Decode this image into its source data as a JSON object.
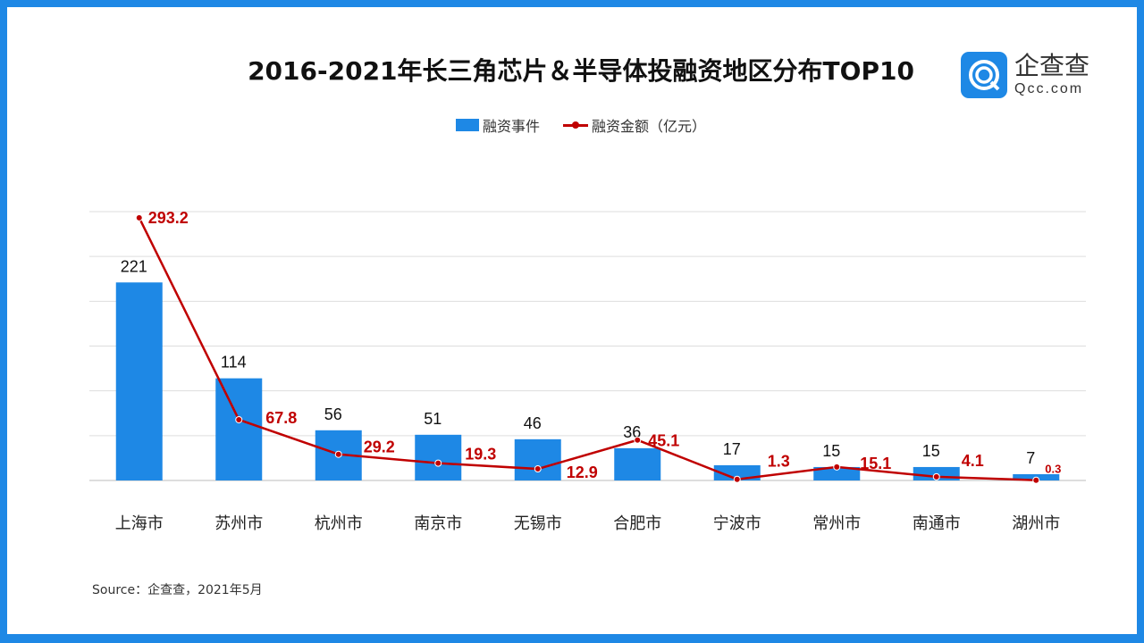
{
  "title": "2016-2021年长三角芯片＆半导体投融资地区分布TOP10",
  "logo": {
    "cn": "企查查",
    "en": "Qcc.com"
  },
  "source": "Source：企查查，2021年5月",
  "colors": {
    "border": "#1e88e5",
    "bar": "#1e88e5",
    "line": "#c00000"
  },
  "chart_data": {
    "type": "bar+line",
    "title": "2016-2021年长三角芯片＆半导体投融资地区分布TOP10",
    "categories": [
      "上海市",
      "苏州市",
      "杭州市",
      "南京市",
      "无锡市",
      "合肥市",
      "宁波市",
      "常州市",
      "南通市",
      "湖州市"
    ],
    "series": [
      {
        "name": "融资事件",
        "type": "bar",
        "values": [
          221,
          114,
          56,
          51,
          46,
          36,
          17,
          15,
          15,
          7
        ]
      },
      {
        "name": "融资金额（亿元）",
        "type": "line",
        "values": [
          293.2,
          67.8,
          29.2,
          19.3,
          12.9,
          45.1,
          1.3,
          15.1,
          4.1,
          0.3
        ]
      }
    ],
    "ylim": [
      0,
      300
    ],
    "grid": true,
    "legend": "top-center"
  }
}
